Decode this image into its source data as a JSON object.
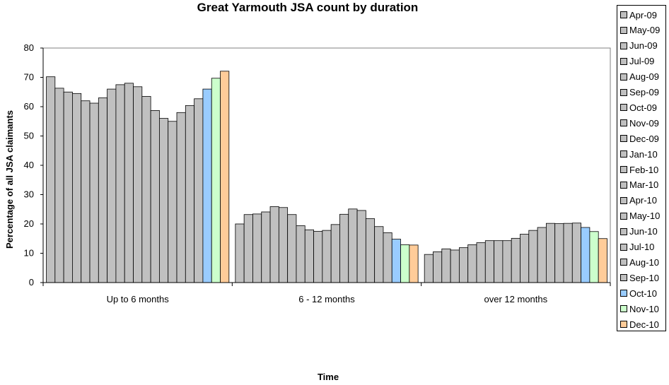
{
  "chart_data": {
    "type": "bar",
    "title": "Great Yarmouth JSA count by duration",
    "xlabel": "Time",
    "ylabel": "Percentage of all JSA claimants",
    "ylim": [
      0,
      80
    ],
    "yticks": [
      "0",
      "10",
      "20",
      "30",
      "40",
      "50",
      "60",
      "70",
      "80"
    ],
    "grid": false,
    "legend_position": "right",
    "categories": [
      "Up to 6 months",
      "6 - 12 months",
      "over 12 months"
    ],
    "series": [
      {
        "name": "Apr-09",
        "color": "#c0c0c0",
        "values": [
          70.2,
          20.0,
          9.6
        ]
      },
      {
        "name": "May-09",
        "color": "#c0c0c0",
        "values": [
          66.3,
          23.2,
          10.5
        ]
      },
      {
        "name": "Jun-09",
        "color": "#c0c0c0",
        "values": [
          65.0,
          23.4,
          11.5
        ]
      },
      {
        "name": "Jul-09",
        "color": "#c0c0c0",
        "values": [
          64.5,
          24.1,
          11.1
        ]
      },
      {
        "name": "Aug-09",
        "color": "#c0c0c0",
        "values": [
          62.0,
          25.9,
          11.9
        ]
      },
      {
        "name": "Sep-09",
        "color": "#c0c0c0",
        "values": [
          61.2,
          25.6,
          12.9
        ]
      },
      {
        "name": "Oct-09",
        "color": "#c0c0c0",
        "values": [
          63.0,
          23.2,
          13.6
        ]
      },
      {
        "name": "Nov-09",
        "color": "#c0c0c0",
        "values": [
          66.0,
          19.4,
          14.3
        ]
      },
      {
        "name": "Dec-09",
        "color": "#c0c0c0",
        "values": [
          67.5,
          18.0,
          14.3
        ]
      },
      {
        "name": "Jan-10",
        "color": "#c0c0c0",
        "values": [
          68.0,
          17.5,
          14.3
        ]
      },
      {
        "name": "Feb-10",
        "color": "#c0c0c0",
        "values": [
          66.8,
          17.8,
          15.1
        ]
      },
      {
        "name": "Mar-10",
        "color": "#c0c0c0",
        "values": [
          63.5,
          19.8,
          16.5
        ]
      },
      {
        "name": "Apr-10",
        "color": "#c0c0c0",
        "values": [
          58.7,
          23.3,
          17.8
        ]
      },
      {
        "name": "May-10",
        "color": "#c0c0c0",
        "values": [
          56.0,
          25.1,
          18.8
        ]
      },
      {
        "name": "Jun-10",
        "color": "#c0c0c0",
        "values": [
          55.0,
          24.6,
          20.2
        ]
      },
      {
        "name": "Jul-10",
        "color": "#c0c0c0",
        "values": [
          58.0,
          21.8,
          20.1
        ]
      },
      {
        "name": "Aug-10",
        "color": "#c0c0c0",
        "values": [
          60.4,
          19.1,
          20.2
        ]
      },
      {
        "name": "Sep-10",
        "color": "#c0c0c0",
        "values": [
          62.7,
          17.0,
          20.3
        ]
      },
      {
        "name": "Oct-10",
        "color": "#99ccff",
        "values": [
          66.0,
          14.8,
          18.8
        ]
      },
      {
        "name": "Nov-10",
        "color": "#ccffcc",
        "values": [
          69.7,
          12.9,
          17.4
        ]
      },
      {
        "name": "Dec-10",
        "color": "#ffcc99",
        "values": [
          72.1,
          12.8,
          15.0
        ]
      }
    ]
  }
}
